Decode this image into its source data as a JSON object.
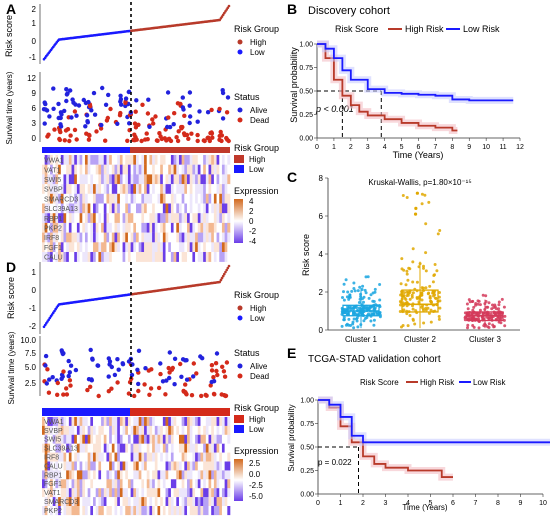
{
  "panels": {
    "A": {
      "letter": "A",
      "ylabel_top": "Risk score",
      "ylabel_mid": "Survival time (years)",
      "y_ticks_top": [
        "2",
        "1",
        "0",
        "-1"
      ],
      "y_ticks_mid": [
        "12",
        "9",
        "6",
        "3",
        "0"
      ],
      "legend_risk": {
        "title": "Risk Group",
        "high": "High",
        "low": "Low"
      },
      "legend_status": {
        "title": "Status",
        "alive": "Alive",
        "dead": "Dead"
      },
      "legend_heat_risk": {
        "title": "Risk Group",
        "high": "High",
        "low": "Low"
      },
      "legend_expr": {
        "title": "Expression",
        "ticks": [
          "4",
          "2",
          "0",
          "-2",
          "-4"
        ]
      },
      "genes": [
        "VWA1",
        "VAT1",
        "SWI5",
        "SVBP",
        "SMARCD3",
        "SLC39A13",
        "RBP1",
        "PKP2",
        "IRF8",
        "FGF1",
        "CALU"
      ]
    },
    "B": {
      "letter": "B",
      "title": "Discovery cohort",
      "legend_title": "Risk Score",
      "legend_high": "High Risk",
      "legend_low": "Low Risk",
      "ylabel": "Survival probability",
      "xlabel": "Time (Years)",
      "pvalue": "p < 0.001",
      "y_ticks": [
        "1.00",
        "0.75",
        "0.50",
        "0.25",
        "0.00"
      ],
      "x_ticks": [
        "0",
        "1",
        "2",
        "3",
        "4",
        "5",
        "6",
        "7",
        "8",
        "9",
        "10",
        "11",
        "12"
      ]
    },
    "C": {
      "letter": "C",
      "annotation": "Kruskal-Wallis, p=1.80×10⁻¹⁵",
      "ylabel": "Risk score",
      "y_ticks": [
        "8",
        "6",
        "4",
        "2",
        "0"
      ],
      "categories": [
        "Cluster 1",
        "Cluster 2",
        "Cluster 3"
      ]
    },
    "D": {
      "letter": "D",
      "ylabel_top": "Risk score",
      "ylabel_mid": "Survival time (years)",
      "y_ticks_top": [
        "1",
        "0",
        "-1",
        "-2"
      ],
      "y_ticks_mid": [
        "10.0",
        "7.5",
        "5.0",
        "2.5"
      ],
      "legend_risk": {
        "title": "Risk Group",
        "high": "High",
        "low": "Low"
      },
      "legend_status": {
        "title": "Status",
        "alive": "Alive",
        "dead": "Dead"
      },
      "legend_heat_risk": {
        "title": "Risk Group",
        "high": "High",
        "low": "Low"
      },
      "legend_expr": {
        "title": "Expression",
        "ticks": [
          "2.5",
          "0.0",
          "-2.5",
          "-5.0"
        ]
      },
      "genes": [
        "VWA1",
        "SVBP",
        "SWI5",
        "SLC39A13",
        "IRF8",
        "CALU",
        "RBP1",
        "FGF1",
        "VAT1",
        "SMARCD3",
        "PKP2"
      ]
    },
    "E": {
      "letter": "E",
      "title": "TCGA-STAD validation cohort",
      "legend_title": "Risk Score",
      "legend_high": "High Risk",
      "legend_low": "Low Risk",
      "ylabel": "Survival probability",
      "xlabel": "Time (Years)",
      "pvalue": "p = 0.022",
      "y_ticks": [
        "1.00",
        "0.75",
        "0.50",
        "0.25",
        "0.00"
      ],
      "x_ticks": [
        "0",
        "1",
        "2",
        "3",
        "4",
        "5",
        "6",
        "7",
        "8",
        "9",
        "10"
      ]
    }
  },
  "colors": {
    "high": "#b83a2a",
    "low": "#1a1aff",
    "dead": "#d42a1a",
    "alive": "#2222dd",
    "c1": "#1aa6e0",
    "c2": "#e0a800",
    "c3": "#d43a5a"
  },
  "chart_data": [
    {
      "type": "line",
      "title": "Discovery cohort",
      "xlabel": "Time (Years)",
      "ylabel": "Survival probability",
      "xlim": [
        0,
        12
      ],
      "ylim": [
        0,
        1
      ],
      "series": [
        {
          "name": "High Risk",
          "x": [
            0,
            0.5,
            1,
            1.5,
            2,
            2.5,
            3,
            4,
            5,
            6,
            7,
            8,
            8.3
          ],
          "values": [
            1,
            0.85,
            0.62,
            0.45,
            0.35,
            0.28,
            0.24,
            0.2,
            0.16,
            0.13,
            0.11,
            0.08,
            0.08
          ]
        },
        {
          "name": "Low Risk",
          "x": [
            0,
            0.5,
            1,
            1.5,
            2,
            3,
            4,
            5,
            6,
            7,
            8,
            9,
            10,
            11,
            11.6
          ],
          "values": [
            1,
            0.95,
            0.85,
            0.72,
            0.62,
            0.52,
            0.48,
            0.47,
            0.46,
            0.45,
            0.41,
            0.4,
            0.4,
            0.4,
            0.4
          ]
        }
      ]
    },
    {
      "type": "box",
      "annotation": "Kruskal-Wallis, p=1.80×10⁻¹⁵",
      "ylabel": "Risk score",
      "categories": [
        "Cluster 1",
        "Cluster 2",
        "Cluster 3"
      ],
      "ylim": [
        0,
        8
      ],
      "q1": [
        0.75,
        0.95,
        0.5
      ],
      "median": [
        1.0,
        1.35,
        0.75
      ],
      "q3": [
        1.3,
        2.1,
        0.95
      ],
      "whisker_low": [
        0.1,
        0.1,
        0.1
      ],
      "whisker_high": [
        2.2,
        3.6,
        1.6
      ]
    },
    {
      "type": "line",
      "title": "TCGA-STAD validation cohort",
      "xlabel": "Time (Years)",
      "ylabel": "Survival probability",
      "xlim": [
        0,
        10
      ],
      "ylim": [
        0,
        1
      ],
      "series": [
        {
          "name": "High Risk",
          "x": [
            0,
            0.5,
            1,
            1.5,
            2,
            2.5,
            3,
            4,
            5,
            5.5,
            6
          ],
          "values": [
            1,
            0.92,
            0.72,
            0.55,
            0.4,
            0.32,
            0.28,
            0.25,
            0.25,
            0.18,
            0.18
          ]
        },
        {
          "name": "Low Risk",
          "x": [
            0,
            0.5,
            1,
            1.5,
            2,
            3,
            5,
            10.5
          ],
          "values": [
            1,
            0.95,
            0.82,
            0.62,
            0.55,
            0.55,
            0.55,
            0.55
          ]
        }
      ]
    }
  ]
}
